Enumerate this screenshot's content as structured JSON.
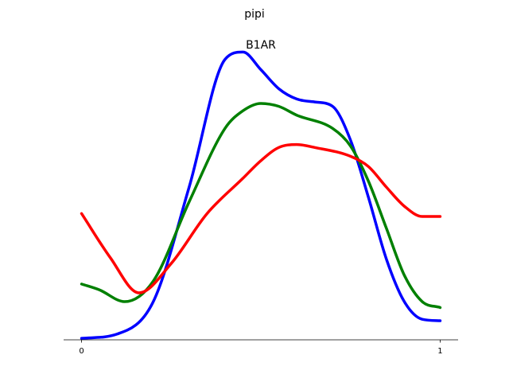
{
  "chart_data": {
    "type": "line",
    "title": "pipi",
    "subtitle": "B1AR",
    "xlabel": "",
    "ylabel": "",
    "xlim": [
      -0.05,
      1.05
    ],
    "ylim": [
      0,
      1.0
    ],
    "x_ticks": [
      {
        "value": 0,
        "label": "0"
      },
      {
        "value": 1,
        "label": "1"
      }
    ],
    "grid": false,
    "legend": "none",
    "series": [
      {
        "color": "#0000ff",
        "x": [
          0,
          0.1,
          0.2,
          0.3,
          0.4,
          0.45,
          0.5,
          0.55,
          0.6,
          0.65,
          0.7,
          0.75,
          0.8,
          0.85,
          0.9,
          0.95,
          1.0
        ],
        "y": [
          0.005,
          0.02,
          0.13,
          0.52,
          0.955,
          0.98,
          0.92,
          0.855,
          0.82,
          0.81,
          0.795,
          0.68,
          0.485,
          0.275,
          0.13,
          0.07,
          0.065
        ]
      },
      {
        "color": "#008000",
        "x": [
          0,
          0.05,
          0.12,
          0.2,
          0.3,
          0.4,
          0.45,
          0.5,
          0.55,
          0.6,
          0.7,
          0.75,
          0.8,
          0.85,
          0.9,
          0.95,
          1.0
        ],
        "y": [
          0.19,
          0.17,
          0.13,
          0.2,
          0.47,
          0.72,
          0.78,
          0.805,
          0.795,
          0.765,
          0.72,
          0.66,
          0.54,
          0.38,
          0.22,
          0.13,
          0.11
        ]
      },
      {
        "color": "#ff0000",
        "x": [
          0,
          0.08,
          0.16,
          0.25,
          0.35,
          0.45,
          0.5,
          0.55,
          0.6,
          0.65,
          0.75,
          0.8,
          0.85,
          0.9,
          0.95,
          1.0
        ],
        "y": [
          0.43,
          0.28,
          0.16,
          0.26,
          0.43,
          0.55,
          0.61,
          0.655,
          0.665,
          0.655,
          0.625,
          0.59,
          0.52,
          0.455,
          0.42,
          0.42
        ]
      }
    ]
  }
}
